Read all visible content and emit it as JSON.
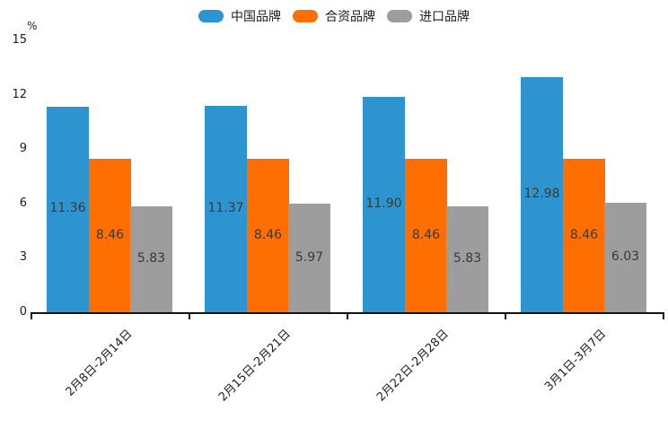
{
  "chart_data": {
    "type": "bar",
    "title": "",
    "xlabel": "",
    "ylabel": "%",
    "ylim": [
      0,
      15
    ],
    "yticks": [
      0,
      3,
      6,
      9,
      12,
      15
    ],
    "grid": false,
    "legend_position": "top-center",
    "value_labels_shown": true,
    "categories": [
      "2月8日-2月14日",
      "2月15日-2月21日",
      "2月22日-2月28日",
      "3月1日-3月7日"
    ],
    "series": [
      {
        "name": "中国品牌",
        "color": "#2E94D0",
        "values": [
          11.36,
          11.37,
          11.9,
          12.98
        ]
      },
      {
        "name": "合资品牌",
        "color": "#FE6E00",
        "values": [
          8.46,
          8.46,
          8.46,
          8.46
        ]
      },
      {
        "name": "进口品牌",
        "color": "#9D9D9D",
        "values": [
          5.83,
          5.97,
          5.83,
          6.03
        ]
      }
    ],
    "value_label_color": "#3a3a3a",
    "axis_color": "#141414",
    "background_color": "#ffffff"
  }
}
